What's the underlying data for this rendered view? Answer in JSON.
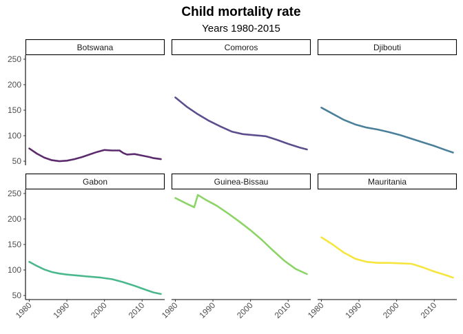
{
  "chart_data": {
    "type": "line",
    "title": "Child mortality rate",
    "subtitle": "Years 1980-2015",
    "xlabel": "",
    "ylabel": "",
    "xlim": [
      1979,
      2016
    ],
    "ylim": [
      42,
      258
    ],
    "x_ticks": [
      1980,
      1990,
      2000,
      2010
    ],
    "y_ticks": [
      50,
      100,
      150,
      200,
      250
    ],
    "grid": false,
    "facet_layout": "2 rows x 3 columns",
    "panels": [
      {
        "name": "Botswana",
        "color": "#5b2b6d",
        "x": [
          1980,
          1982,
          1984,
          1986,
          1988,
          1990,
          1992,
          1994,
          1996,
          1998,
          2000,
          2002,
          2004,
          2005,
          2006,
          2008,
          2010,
          2012,
          2013,
          2015
        ],
        "y": [
          75,
          65,
          57,
          52,
          50,
          51,
          54,
          58,
          63,
          68,
          72,
          71,
          71,
          66,
          63,
          64,
          61,
          58,
          56,
          54
        ]
      },
      {
        "name": "Comoros",
        "color": "#5c4e8c",
        "x": [
          1980,
          1983,
          1986,
          1989,
          1992,
          1995,
          1998,
          2001,
          2004,
          2007,
          2010,
          2013,
          2015
        ],
        "y": [
          175,
          157,
          142,
          129,
          118,
          108,
          103,
          101,
          99,
          92,
          84,
          77,
          73
        ]
      },
      {
        "name": "Djibouti",
        "color": "#4a8099",
        "x": [
          1980,
          1983,
          1986,
          1989,
          1992,
          1995,
          1998,
          2001,
          2004,
          2007,
          2010,
          2013,
          2015
        ],
        "y": [
          155,
          143,
          131,
          122,
          116,
          112,
          107,
          101,
          94,
          87,
          80,
          72,
          67
        ]
      },
      {
        "name": "Gabon",
        "color": "#4ab88c",
        "x": [
          1980,
          1982,
          1984,
          1986,
          1988,
          1990,
          1993,
          1996,
          1999,
          2002,
          2005,
          2008,
          2011,
          2013,
          2015
        ],
        "y": [
          116,
          108,
          101,
          96,
          93,
          91,
          89,
          87,
          85,
          82,
          76,
          69,
          61,
          56,
          53
        ]
      },
      {
        "name": "Guinea-Bissau",
        "color": "#8cd466",
        "x": [
          1980,
          1983,
          1985,
          1986,
          1988,
          1991,
          1994,
          1997,
          2000,
          2003,
          2006,
          2009,
          2012,
          2015
        ],
        "y": [
          241,
          230,
          223,
          247,
          238,
          226,
          211,
          195,
          178,
          159,
          138,
          118,
          102,
          92
        ]
      },
      {
        "name": "Mauritania",
        "color": "#f5e53d",
        "x": [
          1980,
          1983,
          1986,
          1989,
          1992,
          1995,
          1998,
          2001,
          2004,
          2007,
          2010,
          2013,
          2015
        ],
        "y": [
          164,
          150,
          134,
          122,
          116,
          114,
          114,
          113,
          112,
          105,
          97,
          90,
          85
        ]
      }
    ]
  }
}
